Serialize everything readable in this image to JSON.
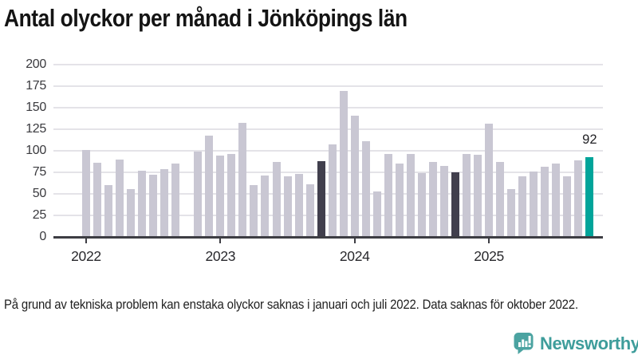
{
  "title": "Antal olyckor per månad i Jönköpings län",
  "footnote": "På grund av tekniska problem kan enstaka olyckor saknas i januari och juli 2022. Data saknas för oktober 2022.",
  "branding": {
    "logo_text": "Newsworthy",
    "logo_icon": "newsworthy-speech-bubble-bar-chart-icon",
    "logo_color": "#3e9d9b",
    "logo_icon_color": "#4ba3a1"
  },
  "colors": {
    "bar_default": "#c9c7d3",
    "bar_highlight_dark": "#413f4d",
    "bar_highlight_current": "#00a49a",
    "gridline": "#e4e3e8",
    "axis": "#3d3d43",
    "tick_label": "#3a3a3e"
  },
  "chart_data": {
    "type": "bar",
    "title": "Antal olyckor per månad i Jönköpings län",
    "xlabel": "",
    "ylabel": "",
    "ylim": [
      0,
      200
    ],
    "y_ticks": [
      0,
      25,
      50,
      75,
      100,
      125,
      150,
      175,
      200
    ],
    "grid": true,
    "x_year_ticks": [
      {
        "label": "2022",
        "month_index": 0
      },
      {
        "label": "2023",
        "month_index": 12
      },
      {
        "label": "2024",
        "month_index": 24
      },
      {
        "label": "2025",
        "month_index": 36
      }
    ],
    "series": [
      {
        "name": "Antal olyckor",
        "points": [
          {
            "month": "2022-01",
            "value": 101
          },
          {
            "month": "2022-02",
            "value": 86
          },
          {
            "month": "2022-03",
            "value": 60
          },
          {
            "month": "2022-04",
            "value": 90
          },
          {
            "month": "2022-05",
            "value": 55
          },
          {
            "month": "2022-06",
            "value": 77
          },
          {
            "month": "2022-07",
            "value": 72
          },
          {
            "month": "2022-08",
            "value": 78
          },
          {
            "month": "2022-09",
            "value": 85
          },
          {
            "month": "2022-10",
            "value": null
          },
          {
            "month": "2022-11",
            "value": 99
          },
          {
            "month": "2022-12",
            "value": 117
          },
          {
            "month": "2023-01",
            "value": 94
          },
          {
            "month": "2023-02",
            "value": 96
          },
          {
            "month": "2023-03",
            "value": 132
          },
          {
            "month": "2023-04",
            "value": 60
          },
          {
            "month": "2023-05",
            "value": 71
          },
          {
            "month": "2023-06",
            "value": 87
          },
          {
            "month": "2023-07",
            "value": 70
          },
          {
            "month": "2023-08",
            "value": 73
          },
          {
            "month": "2023-09",
            "value": 61
          },
          {
            "month": "2023-10",
            "value": 88,
            "highlight": "dark"
          },
          {
            "month": "2023-11",
            "value": 107
          },
          {
            "month": "2023-12",
            "value": 169
          },
          {
            "month": "2024-01",
            "value": 141
          },
          {
            "month": "2024-02",
            "value": 111
          },
          {
            "month": "2024-03",
            "value": 52
          },
          {
            "month": "2024-04",
            "value": 96
          },
          {
            "month": "2024-05",
            "value": 85
          },
          {
            "month": "2024-06",
            "value": 96
          },
          {
            "month": "2024-07",
            "value": 74
          },
          {
            "month": "2024-08",
            "value": 87
          },
          {
            "month": "2024-09",
            "value": 82
          },
          {
            "month": "2024-10",
            "value": 75,
            "highlight": "dark"
          },
          {
            "month": "2024-11",
            "value": 96
          },
          {
            "month": "2024-12",
            "value": 95
          },
          {
            "month": "2025-01",
            "value": 131
          },
          {
            "month": "2025-02",
            "value": 87
          },
          {
            "month": "2025-03",
            "value": 55
          },
          {
            "month": "2025-04",
            "value": 70
          },
          {
            "month": "2025-05",
            "value": 76
          },
          {
            "month": "2025-06",
            "value": 81
          },
          {
            "month": "2025-07",
            "value": 85
          },
          {
            "month": "2025-08",
            "value": 70
          },
          {
            "month": "2025-09",
            "value": 89
          },
          {
            "month": "2025-10",
            "value": 92,
            "highlight": "current",
            "label": "92"
          }
        ]
      }
    ]
  }
}
